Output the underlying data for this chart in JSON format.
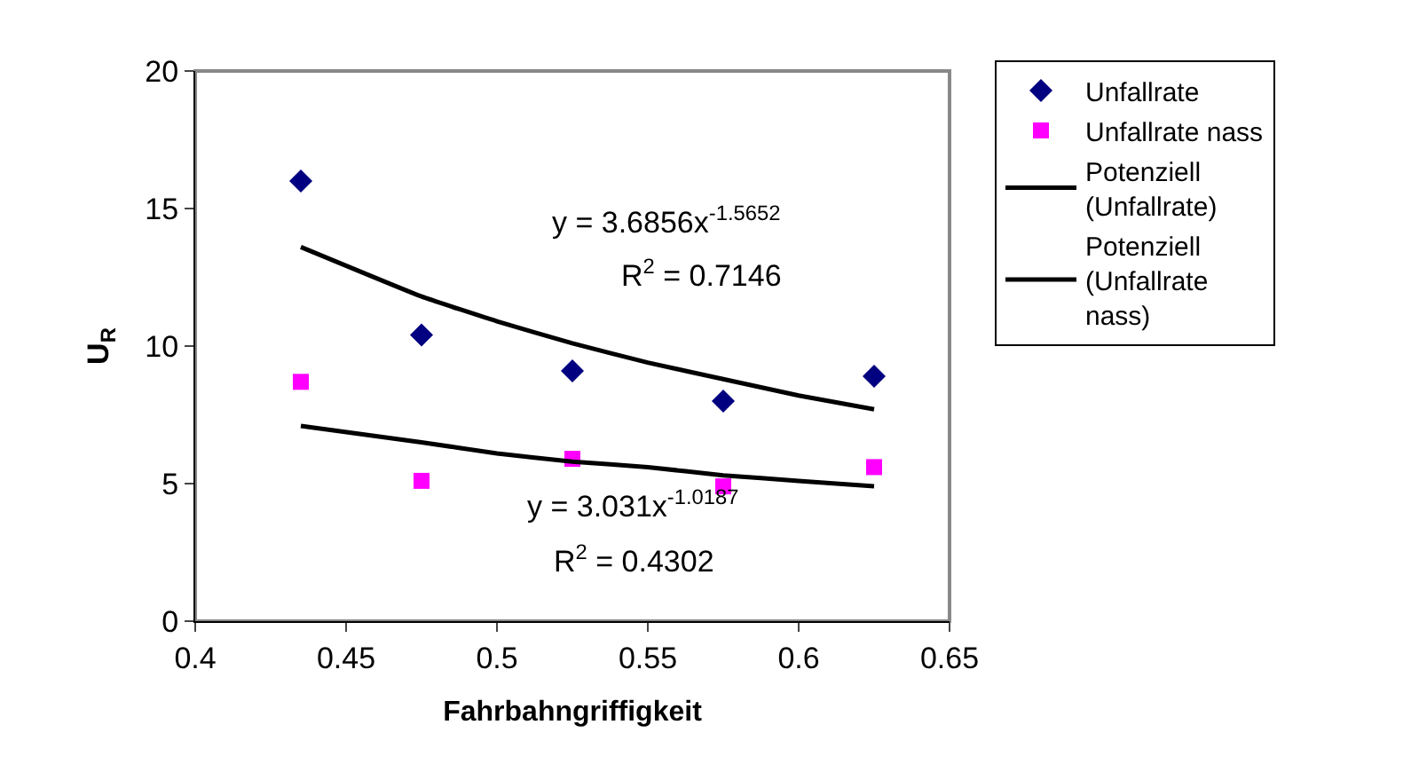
{
  "chart_data": {
    "type": "scatter",
    "xlabel": "Fahrbahngriffigkeit",
    "ylabel": "U$_{R}$",
    "xlim": [
      0.4,
      0.65
    ],
    "xticks": [
      0.4,
      0.45,
      0.5,
      0.55,
      0.6,
      0.65
    ],
    "ylim": [
      0,
      20
    ],
    "yticks": [
      0,
      5,
      10,
      15,
      20
    ],
    "grid": false,
    "legend": "right",
    "series": [
      {
        "name": "Unfallrate",
        "marker": "diamond",
        "color": "#000080",
        "x": [
          0.435,
          0.475,
          0.525,
          0.575,
          0.625
        ],
        "values": [
          16.0,
          10.4,
          9.1,
          8.0,
          8.9
        ]
      },
      {
        "name": "Unfallrate nass",
        "marker": "square",
        "color": "#ff00ff",
        "x": [
          0.435,
          0.475,
          0.525,
          0.575,
          0.625
        ],
        "values": [
          8.7,
          5.1,
          5.9,
          4.9,
          5.6
        ]
      },
      {
        "name": "Potenziell (Unfallrate)",
        "type": "line",
        "marker": "none",
        "color": "#000000",
        "x": [
          0.435,
          0.475,
          0.5,
          0.525,
          0.55,
          0.575,
          0.6,
          0.625
        ],
        "values": [
          13.6,
          11.8,
          10.9,
          10.1,
          9.4,
          8.8,
          8.2,
          7.7
        ]
      },
      {
        "name": "Potenziell (Unfallrate nass)",
        "type": "line",
        "marker": "none",
        "color": "#000000",
        "x": [
          0.435,
          0.475,
          0.5,
          0.525,
          0.55,
          0.575,
          0.6,
          0.625
        ],
        "values": [
          7.1,
          6.5,
          6.1,
          5.8,
          5.6,
          5.3,
          5.1,
          4.9
        ]
      }
    ],
    "annotations": [
      "y = 3.6856x$^{-1.5652}$",
      "R$^{2}$ = 0.7146",
      "y = 3.031x$^{-1.0187}$",
      "R$^{2}$ = 0.4302"
    ]
  }
}
